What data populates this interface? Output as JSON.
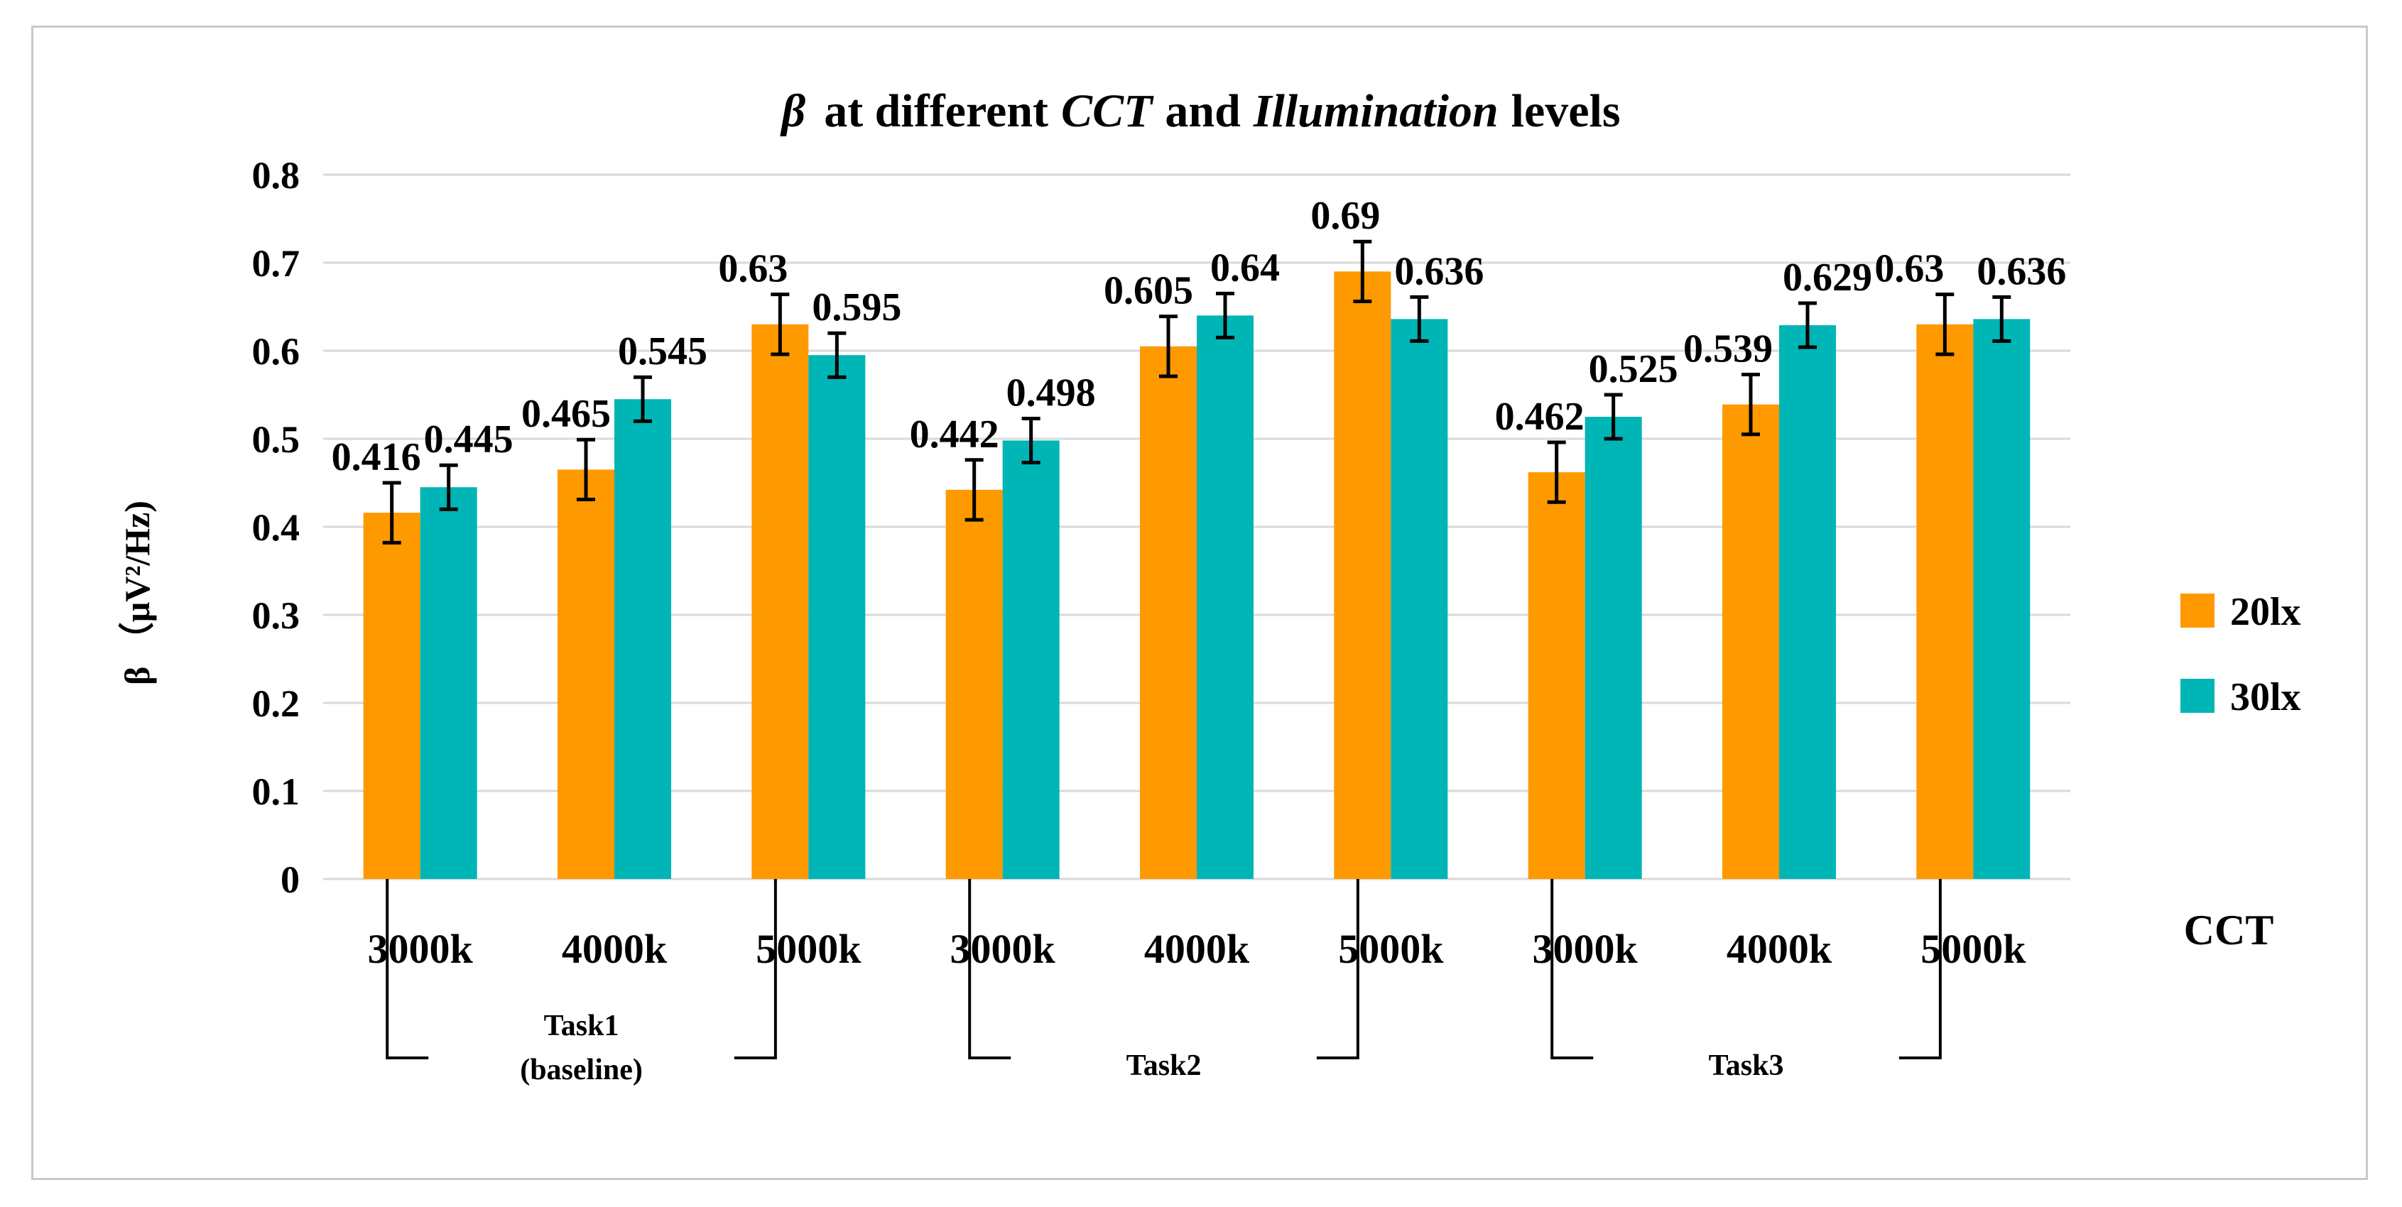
{
  "colors": {
    "series_20lx": "#ff9900",
    "series_30lx": "#00b5b5",
    "grid": "#d9d9d9",
    "frame": "#c9c9c9"
  },
  "chart_data": {
    "type": "bar",
    "title": {
      "symbol": "β",
      "part1": "at different",
      "cct": "CCT",
      "part2": "and",
      "illum": "Illumination",
      "part3": "levels"
    },
    "xlabel": "CCT",
    "ylabel": "β （μV²/Hz)",
    "ylim": [
      0,
      0.8
    ],
    "yticks": [
      "0",
      "0.1",
      "0.2",
      "0.3",
      "0.4",
      "0.5",
      "0.6",
      "0.7",
      "0.8"
    ],
    "categories": [
      "3000k",
      "4000k",
      "5000k",
      "3000k",
      "4000k",
      "5000k",
      "3000k",
      "4000k",
      "5000k"
    ],
    "series": [
      {
        "name": "20lx",
        "values": [
          0.416,
          0.465,
          0.63,
          0.442,
          0.605,
          0.69,
          0.462,
          0.539,
          0.63
        ],
        "labels": [
          "0.416",
          "0.465",
          "0.63",
          "0.442",
          "0.605",
          "0.69",
          "0.462",
          "0.539",
          "0.63"
        ],
        "error": [
          0.034,
          0.034,
          0.034,
          0.034,
          0.034,
          0.034,
          0.034,
          0.034,
          0.034
        ]
      },
      {
        "name": "30lx",
        "values": [
          0.445,
          0.545,
          0.595,
          0.498,
          0.64,
          0.636,
          0.525,
          0.629,
          0.636
        ],
        "labels": [
          "0.445",
          "0.545",
          "0.595",
          "0.498",
          "0.64",
          "0.636",
          "0.525",
          "0.629",
          "0.636"
        ],
        "error": [
          0.025,
          0.025,
          0.025,
          0.025,
          0.025,
          0.025,
          0.025,
          0.025,
          0.025
        ]
      }
    ],
    "groups": [
      {
        "lines": [
          "Task1",
          "(baseline)"
        ]
      },
      {
        "lines": [
          "Task2"
        ]
      },
      {
        "lines": [
          "Task3"
        ]
      }
    ],
    "legend": [
      "20lx",
      "30lx"
    ],
    "legend_position": "right",
    "grid": true
  }
}
